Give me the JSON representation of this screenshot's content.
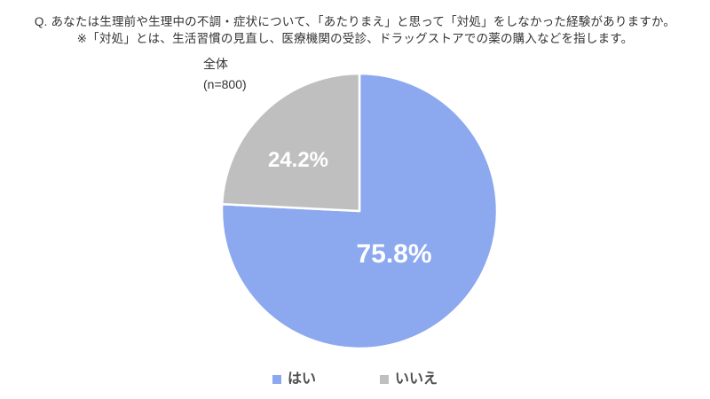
{
  "chart_data": {
    "type": "pie",
    "title_line1": "Q. あなたは生理前や生理中の不調・症状について、「あたりまえ」と思って「対処」をしなかった経験がありますか。",
    "title_line2": "※「対処」とは、生活習慣の見直し、医療機関の受診、ドラッグストアでの薬の購入などを指します。",
    "group_label": "全体",
    "sample_size_label": "(n=800)",
    "start_angle_deg": 0,
    "direction": "clockwise",
    "legend_position": "bottom",
    "background_color": "#ffffff",
    "slice_border_color": "#ffffff",
    "slices": [
      {
        "label": "はい",
        "value": 75.8,
        "display": "75.8%",
        "color": "#8CA9EF"
      },
      {
        "label": "いいえ",
        "value": 24.2,
        "display": "24.2%",
        "color": "#BFBFBF"
      }
    ]
  }
}
